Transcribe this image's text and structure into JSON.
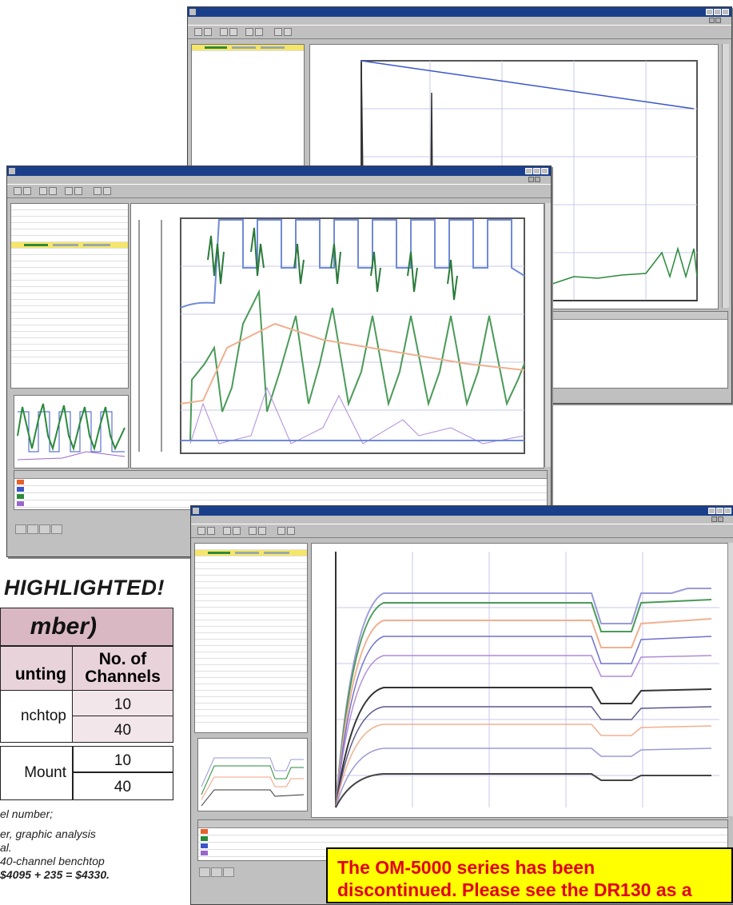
{
  "headline": "S HIGHLIGHTED!",
  "table": {
    "title_fragment": "mber)",
    "col_mounting": "unting",
    "col_channels_line1": "No. of",
    "col_channels_line2": "Channels",
    "rows": [
      {
        "mounting": "nchtop",
        "channels": [
          "10",
          "40"
        ]
      },
      {
        "mounting": "Mount",
        "channels": [
          "10",
          "40"
        ]
      }
    ]
  },
  "footnotes": [
    "el number;",
    "",
    "er, graphic analysis",
    "al.",
    " 40-channel benchtop",
    "$4095 + 235 = $4330."
  ],
  "windows": {
    "back": {
      "plot_colors": [
        "#3a56c8",
        "#2a8a3a",
        "#ff9966",
        "#333333"
      ]
    },
    "middle": {
      "legend_colors": [
        "#e8602a",
        "#3a56c8",
        "#2a8a3a",
        "#9a66cc"
      ]
    },
    "front": {
      "legend_colors": [
        "#e8602a",
        "#2a8a3a",
        "#3a56c8",
        "#9a66cc",
        "#111111"
      ]
    }
  },
  "notice": {
    "line1": "The OM-5000 series has been",
    "line2": "discontinued. Please see the DR130 as a"
  }
}
